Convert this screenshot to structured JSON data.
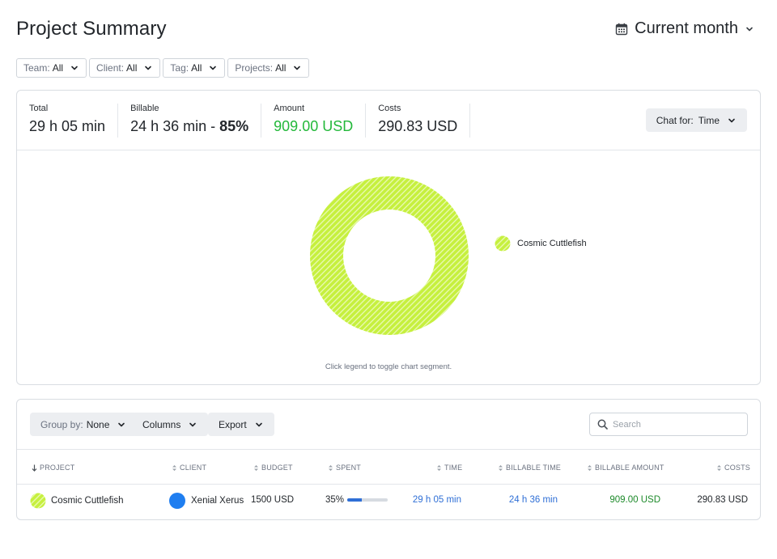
{
  "header": {
    "title": "Project Summary",
    "period_label": "Current month"
  },
  "filters": [
    {
      "label": "Team:",
      "value": "All"
    },
    {
      "label": "Client:",
      "value": "All"
    },
    {
      "label": "Tag:",
      "value": "All"
    },
    {
      "label": "Projects:",
      "value": "All"
    }
  ],
  "stats": {
    "total_label": "Total",
    "total_value": "29 h 05 min",
    "billable_label": "Billable",
    "billable_value": "24 h 36 min - ",
    "billable_pct": "85%",
    "amount_label": "Amount",
    "amount_value": "909.00 USD",
    "costs_label": "Costs",
    "costs_value": "290.83 USD"
  },
  "chart_toggle": {
    "label": "Chat for:",
    "value": "Time"
  },
  "chart_data": {
    "type": "pie",
    "categories": [
      "Cosmic Cuttlefish"
    ],
    "values": [
      100
    ],
    "legend": "right",
    "colors": [
      "#c6f03e"
    ]
  },
  "chart_hint": "Click legend to toggle chart segment.",
  "toolbar": {
    "group_by_label": "Group by:",
    "group_by_value": "None",
    "columns_label": "Columns",
    "export_label": "Export",
    "search_placeholder": "Search"
  },
  "table": {
    "columns": [
      "PROJECT",
      "CLIENT",
      "BUDGET",
      "SPENT",
      "TIME",
      "BILLABLE TIME",
      "BILLABLE AMOUNT",
      "COSTS"
    ],
    "rows": [
      {
        "project": "Cosmic Cuttlefish",
        "client": "Xenial Xerus",
        "budget": "1500 USD",
        "spent": "35%",
        "spent_fraction": 0.35,
        "time": "29 h 05 min",
        "billable_time": "24 h 36 min",
        "billable_amount": "909.00 USD",
        "costs": "290.83 USD"
      }
    ]
  },
  "colors": {
    "project_color": "#c6f03e",
    "client_color": "#1f7ef0",
    "accent": "#2f6fd6",
    "amount_green": "#23b83a"
  }
}
